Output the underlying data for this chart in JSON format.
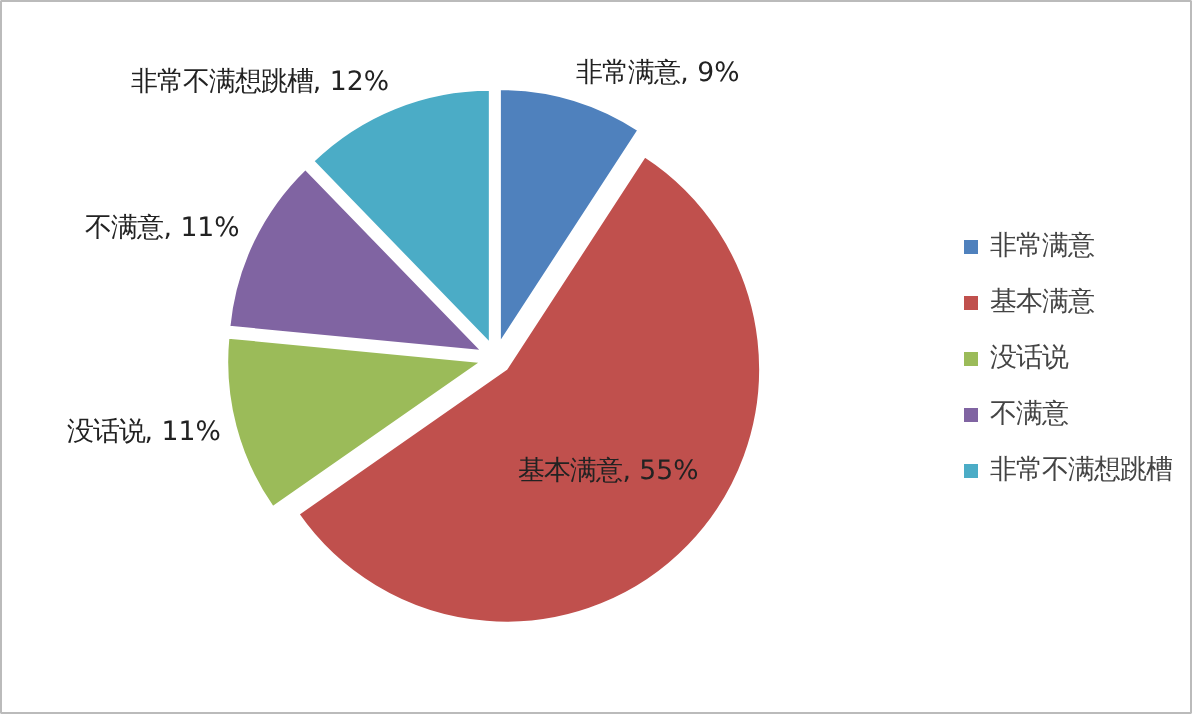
{
  "chart_data": {
    "type": "pie",
    "categories": [
      "非常满意",
      "基本满意",
      "没话说",
      "不满意",
      "非常不满想跳槽"
    ],
    "values": [
      9,
      55,
      11,
      11,
      12
    ],
    "colors": [
      "#4f81bd",
      "#c0504d",
      "#9bbb59",
      "#8064a2",
      "#4bacc6"
    ],
    "value_labels": [
      "非常满意, 9%",
      "基本满意, 55%",
      "没话说, 11%",
      "不满意, 11%",
      "非常不满想跳槽, 12%"
    ],
    "legend": "right"
  }
}
